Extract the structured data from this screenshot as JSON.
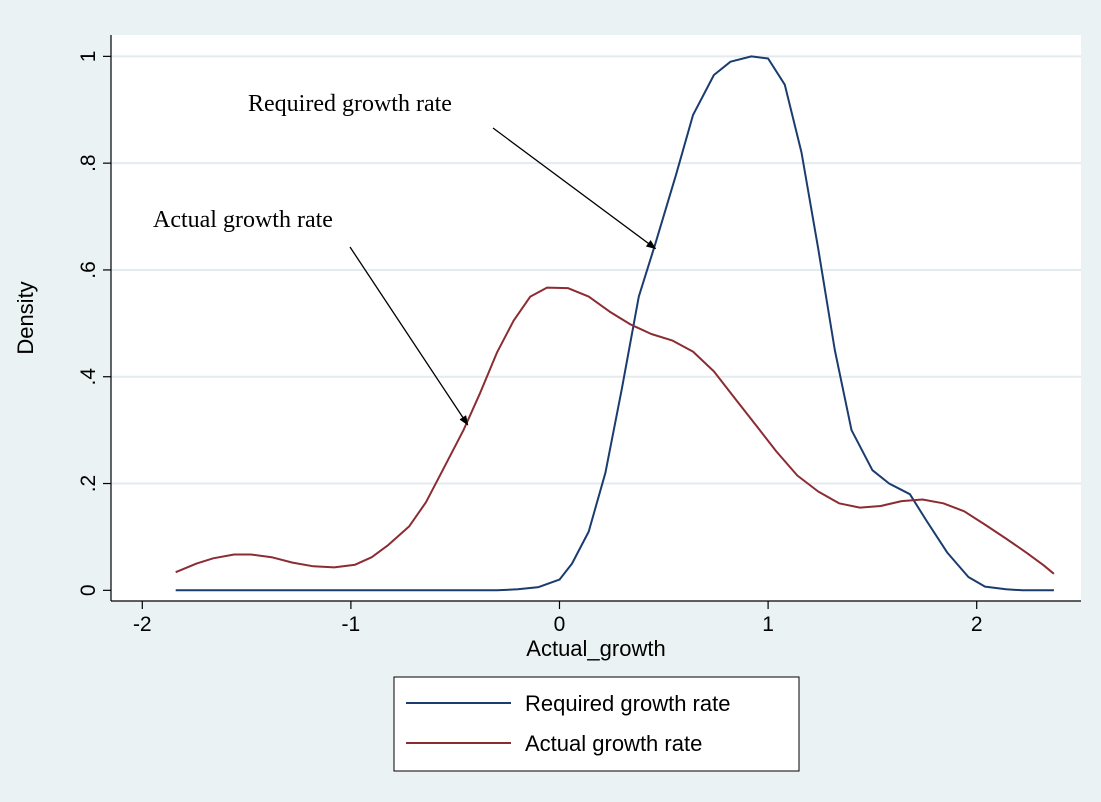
{
  "chart_data": {
    "type": "line",
    "title": "",
    "xlabel": "Actual_growth",
    "ylabel": "Density",
    "xlim": [
      -2.15,
      2.5
    ],
    "ylim": [
      -0.02,
      1.04
    ],
    "x_ticks": [
      -2,
      -1,
      0,
      1,
      2
    ],
    "x_tick_labels": [
      "-2",
      "-1",
      "0",
      "1",
      "2"
    ],
    "y_ticks": [
      0,
      0.2,
      0.4,
      0.6,
      0.8,
      1
    ],
    "y_tick_labels": [
      "0",
      ".2",
      ".4",
      ".6",
      ".8",
      "1"
    ],
    "grid": "horizontal",
    "legend_position": "bottom",
    "series": [
      {
        "name": "Required growth rate",
        "color": "#1a3c6e",
        "points": [
          [
            -1.84,
            0.0
          ],
          [
            -1.2,
            0.0
          ],
          [
            -0.6,
            0.0
          ],
          [
            -0.3,
            0.0
          ],
          [
            -0.2,
            0.002
          ],
          [
            -0.1,
            0.006
          ],
          [
            0.0,
            0.02
          ],
          [
            0.06,
            0.05
          ],
          [
            0.14,
            0.11
          ],
          [
            0.22,
            0.22
          ],
          [
            0.3,
            0.38
          ],
          [
            0.38,
            0.55
          ],
          [
            0.46,
            0.65
          ],
          [
            0.56,
            0.78
          ],
          [
            0.64,
            0.89
          ],
          [
            0.74,
            0.965
          ],
          [
            0.82,
            0.99
          ],
          [
            0.92,
            1.0
          ],
          [
            1.0,
            0.996
          ],
          [
            1.08,
            0.947
          ],
          [
            1.16,
            0.82
          ],
          [
            1.24,
            0.64
          ],
          [
            1.32,
            0.45
          ],
          [
            1.4,
            0.3
          ],
          [
            1.5,
            0.225
          ],
          [
            1.58,
            0.2
          ],
          [
            1.68,
            0.18
          ],
          [
            1.76,
            0.13
          ],
          [
            1.86,
            0.07
          ],
          [
            1.96,
            0.025
          ],
          [
            2.04,
            0.007
          ],
          [
            2.14,
            0.002
          ],
          [
            2.22,
            0.0
          ],
          [
            2.37,
            0.0
          ]
        ]
      },
      {
        "name": "Actual growth rate",
        "color": "#8b2c33",
        "points": [
          [
            -1.84,
            0.034
          ],
          [
            -1.74,
            0.05
          ],
          [
            -1.66,
            0.06
          ],
          [
            -1.56,
            0.067
          ],
          [
            -1.48,
            0.067
          ],
          [
            -1.38,
            0.062
          ],
          [
            -1.28,
            0.052
          ],
          [
            -1.18,
            0.045
          ],
          [
            -1.08,
            0.043
          ],
          [
            -0.98,
            0.048
          ],
          [
            -0.9,
            0.062
          ],
          [
            -0.82,
            0.085
          ],
          [
            -0.72,
            0.12
          ],
          [
            -0.64,
            0.165
          ],
          [
            -0.56,
            0.225
          ],
          [
            -0.46,
            0.3
          ],
          [
            -0.38,
            0.37
          ],
          [
            -0.3,
            0.445
          ],
          [
            -0.22,
            0.505
          ],
          [
            -0.14,
            0.55
          ],
          [
            -0.06,
            0.567
          ],
          [
            0.04,
            0.566
          ],
          [
            0.14,
            0.55
          ],
          [
            0.24,
            0.522
          ],
          [
            0.34,
            0.498
          ],
          [
            0.44,
            0.48
          ],
          [
            0.54,
            0.468
          ],
          [
            0.64,
            0.447
          ],
          [
            0.74,
            0.41
          ],
          [
            0.84,
            0.36
          ],
          [
            0.94,
            0.31
          ],
          [
            1.04,
            0.26
          ],
          [
            1.14,
            0.215
          ],
          [
            1.24,
            0.185
          ],
          [
            1.34,
            0.163
          ],
          [
            1.44,
            0.155
          ],
          [
            1.54,
            0.158
          ],
          [
            1.64,
            0.167
          ],
          [
            1.74,
            0.17
          ],
          [
            1.84,
            0.163
          ],
          [
            1.94,
            0.148
          ],
          [
            2.04,
            0.123
          ],
          [
            2.14,
            0.097
          ],
          [
            2.24,
            0.07
          ],
          [
            2.32,
            0.047
          ],
          [
            2.37,
            0.031
          ]
        ]
      }
    ],
    "annotations": [
      {
        "text": "Required growth rate",
        "arrow_to": [
          0.46,
          0.64
        ]
      },
      {
        "text": "Actual growth rate",
        "arrow_to": [
          -0.44,
          0.31
        ]
      }
    ]
  }
}
